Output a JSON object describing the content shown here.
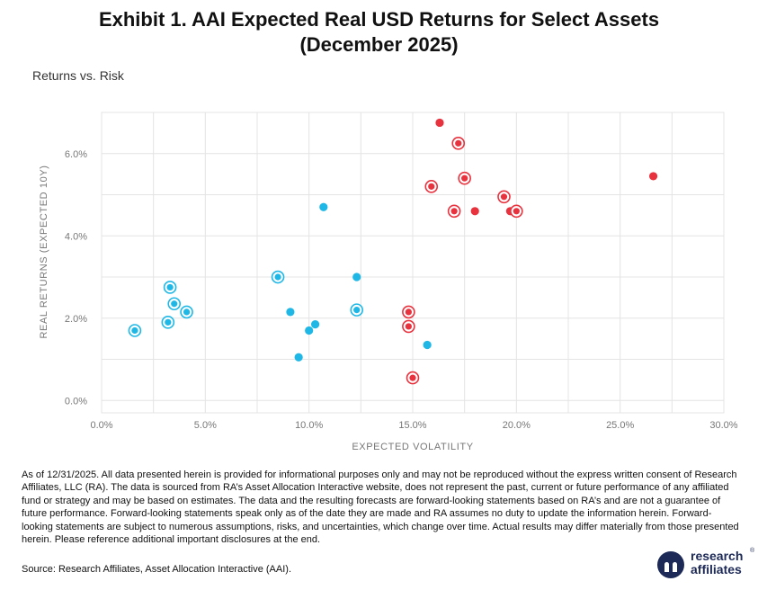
{
  "header": {
    "title_line1": "Exhibit 1. AAI Expected Real USD Returns for Select Assets",
    "title_line2": "(December 2025)",
    "chart_heading": "Returns vs. Risk"
  },
  "chart_data": {
    "type": "scatter",
    "title": "Returns vs. Risk",
    "xlabel": "EXPECTED VOLATILITY",
    "ylabel": "REAL RETURNS (EXPECTED 10Y)",
    "xlim": [
      0,
      30
    ],
    "ylim": [
      -0.3,
      7.0
    ],
    "x_ticks": [
      0,
      5,
      10,
      15,
      20,
      25,
      30
    ],
    "x_tick_labels": [
      "0.0%",
      "5.0%",
      "10.0%",
      "15.0%",
      "20.0%",
      "25.0%",
      "30.0%"
    ],
    "y_ticks": [
      0,
      2,
      4,
      6
    ],
    "y_tick_labels": [
      "0.0%",
      "2.0%",
      "4.0%",
      "6.0%"
    ],
    "grid": true,
    "series": [
      {
        "color": "#1fb8e6",
        "points": [
          {
            "x": 1.6,
            "y": 1.7,
            "ring": true
          },
          {
            "x": 3.2,
            "y": 1.9,
            "ring": true
          },
          {
            "x": 3.3,
            "y": 2.75,
            "ring": true
          },
          {
            "x": 3.5,
            "y": 2.35,
            "ring": true
          },
          {
            "x": 4.1,
            "y": 2.15,
            "ring": true
          },
          {
            "x": 8.5,
            "y": 3.0,
            "ring": true
          },
          {
            "x": 9.1,
            "y": 2.15,
            "ring": false
          },
          {
            "x": 9.5,
            "y": 1.05,
            "ring": false
          },
          {
            "x": 10.0,
            "y": 1.7,
            "ring": false
          },
          {
            "x": 10.3,
            "y": 1.85,
            "ring": false
          },
          {
            "x": 10.7,
            "y": 4.7,
            "ring": false
          },
          {
            "x": 12.3,
            "y": 3.0,
            "ring": false
          },
          {
            "x": 12.3,
            "y": 2.2,
            "ring": true
          },
          {
            "x": 15.7,
            "y": 1.35,
            "ring": false
          }
        ]
      },
      {
        "color": "#e8323e",
        "points": [
          {
            "x": 14.8,
            "y": 2.15,
            "ring": true
          },
          {
            "x": 14.8,
            "y": 1.8,
            "ring": true
          },
          {
            "x": 15.0,
            "y": 0.55,
            "ring": true
          },
          {
            "x": 15.9,
            "y": 5.2,
            "ring": true
          },
          {
            "x": 16.3,
            "y": 6.75,
            "ring": false
          },
          {
            "x": 17.0,
            "y": 4.6,
            "ring": true
          },
          {
            "x": 17.2,
            "y": 6.25,
            "ring": true
          },
          {
            "x": 17.5,
            "y": 5.4,
            "ring": true
          },
          {
            "x": 18.0,
            "y": 4.6,
            "ring": false
          },
          {
            "x": 19.4,
            "y": 4.95,
            "ring": true
          },
          {
            "x": 19.7,
            "y": 4.6,
            "ring": false
          },
          {
            "x": 20.0,
            "y": 4.6,
            "ring": true
          },
          {
            "x": 26.6,
            "y": 5.45,
            "ring": false
          }
        ]
      }
    ]
  },
  "footer": {
    "disclaimer": "As of 12/31/2025. All data presented herein is provided for informational purposes only and may not be reproduced without the express written consent of Research Affiliates, LLC (RA). The data is sourced from RA’s Asset Allocation Interactive website, does not represent the past, current or future performance of any affiliated fund or strategy and may be based on estimates. The data and the resulting forecasts are forward-looking statements based on RA’s and are not a guarantee of future performance. Forward-looking statements speak only as of the date they are made and RA assumes no duty to update the information herein. Forward-looking statements are subject to numerous assumptions, risks, and uncertainties, which change over time. Actual results may differ materially from those presented herein. Please reference additional important disclosures at the end.",
    "source": "Source: Research Affiliates, Asset Allocation Interactive (AAI).",
    "logo_line1": "research",
    "logo_line2": "affiliates",
    "logo_mark": "®"
  }
}
